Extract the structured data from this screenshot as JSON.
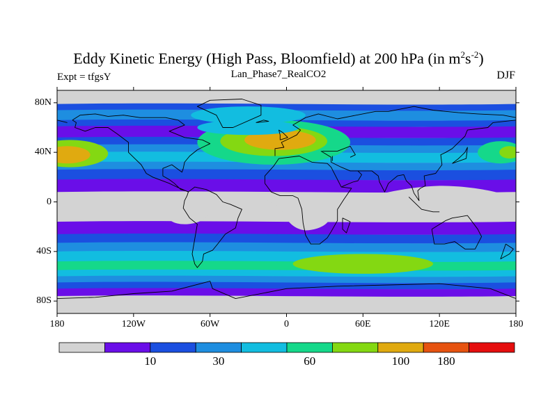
{
  "title": {
    "main": "Eddy Kinetic Energy (High Pass, Bloomfield) at 200 hPa (in m",
    "sup1": "2",
    "mid": "s",
    "sup2": "-2",
    "end": ")"
  },
  "subtitle": "Lan_Phase7_RealCO2",
  "left_label": "Expt = tfgsY",
  "right_label": "DJF",
  "chart_data": {
    "type": "heatmap",
    "projection": "cylindrical-equidistant",
    "lon_range": [
      -180,
      180
    ],
    "lat_range": [
      -90,
      90
    ],
    "lat_ticks": [
      "80N",
      "40N",
      "0",
      "40S",
      "80S"
    ],
    "lon_ticks": [
      "180",
      "120W",
      "60W",
      "0",
      "60E",
      "120E",
      "180"
    ],
    "colorbar": {
      "colors": [
        "#d3d3d3",
        "#6a0ee8",
        "#1b4fe0",
        "#1e8ee0",
        "#12bde0",
        "#15d88a",
        "#84d812",
        "#e0aa10",
        "#e65310",
        "#e50e0e"
      ],
      "labels": [
        "10",
        "30",
        "60",
        "100",
        "180"
      ]
    },
    "zonal_bands_lat_level": [
      [
        84,
        0
      ],
      [
        79,
        2
      ],
      [
        74,
        3
      ],
      [
        66,
        2
      ],
      [
        61,
        1
      ],
      [
        52,
        2
      ],
      [
        46,
        3
      ],
      [
        40,
        4
      ],
      [
        32,
        3
      ],
      [
        26,
        2
      ],
      [
        18,
        1
      ],
      [
        8,
        0
      ],
      [
        -8,
        0
      ],
      [
        -16,
        1
      ],
      [
        -26,
        2
      ],
      [
        -33,
        3
      ],
      [
        -40,
        4
      ],
      [
        -48,
        5
      ],
      [
        -55,
        4
      ],
      [
        -60,
        3
      ],
      [
        -65,
        2
      ],
      [
        -70,
        1
      ],
      [
        -76,
        0
      ]
    ]
  }
}
